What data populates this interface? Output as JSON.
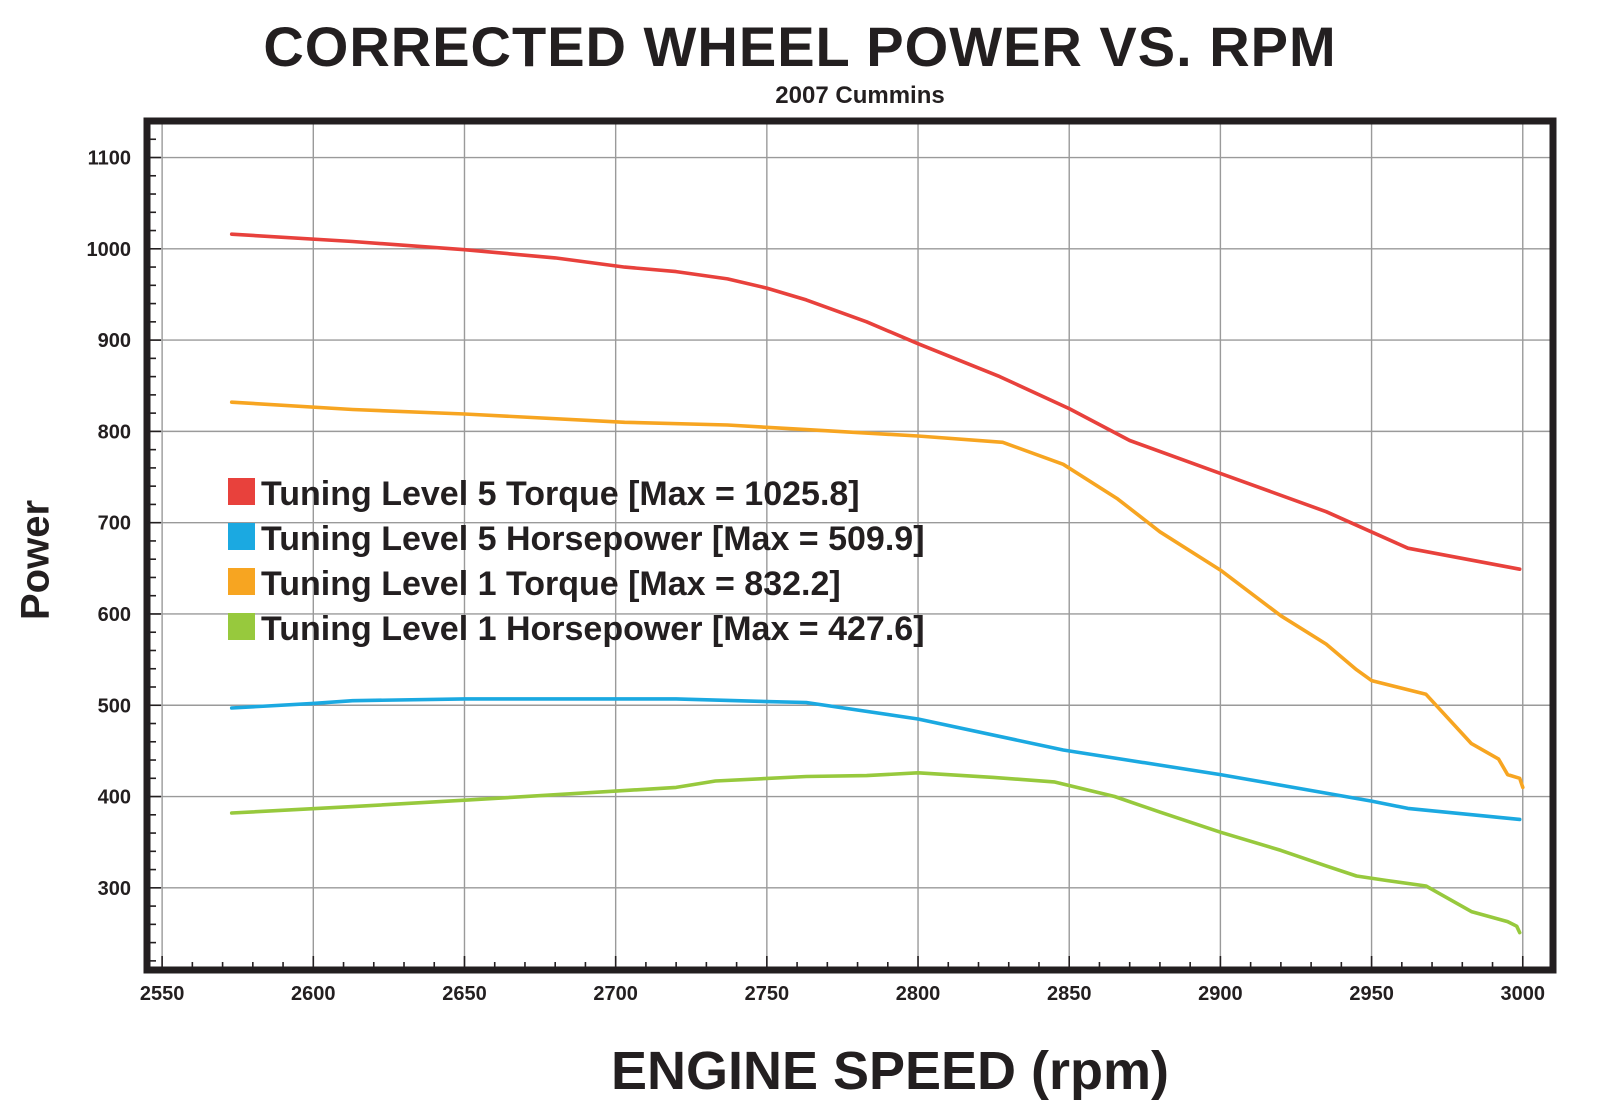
{
  "chart_data": {
    "type": "line",
    "title": "CORRECTED WHEEL POWER VS. RPM",
    "subtitle": "2007 Cummins",
    "xlabel": "ENGINE SPEED (rpm)",
    "ylabel": "Power",
    "xlim": [
      2545,
      3010
    ],
    "ylim": [
      210,
      1140
    ],
    "xticks": [
      2550,
      2600,
      2650,
      2700,
      2750,
      2800,
      2850,
      2900,
      2950,
      3000
    ],
    "xtick_labels": [
      "2550",
      "2600",
      "2650",
      "2700",
      "2750",
      "2800",
      "2850",
      "2900",
      "2950",
      "3000"
    ],
    "yticks": [
      300,
      400,
      500,
      600,
      700,
      800,
      900,
      1000,
      1100
    ],
    "ytick_labels": [
      "300",
      "400",
      "500",
      "600",
      "700",
      "800",
      "900",
      "1000",
      "1100"
    ],
    "grid": true,
    "legend_position": "center-left",
    "series": [
      {
        "name": "Tuning Level 5 Torque [Max = 1025.8]",
        "color": "#e8413c",
        "x": [
          2573,
          2613,
          2650,
          2680,
          2703,
          2720,
          2737,
          2750,
          2763,
          2783,
          2800,
          2827,
          2850,
          2870,
          2900,
          2935,
          2962,
          2999
        ],
        "y": [
          1016,
          1008,
          999,
          990,
          980,
          975,
          967,
          957,
          944,
          920,
          896,
          860,
          825,
          790,
          754,
          712,
          672,
          649
        ]
      },
      {
        "name": "Tuning Level 5 Horsepower [Max = 509.9]",
        "color": "#1ba9e1",
        "x": [
          2573,
          2600,
          2613,
          2650,
          2700,
          2720,
          2750,
          2763,
          2800,
          2848,
          2900,
          2950,
          2962,
          2999
        ],
        "y": [
          497,
          502,
          505,
          507,
          507,
          507,
          504,
          503,
          485,
          451,
          424,
          395,
          387,
          375
        ]
      },
      {
        "name": "Tuning Level 1 Torque [Max = 832.2]",
        "color": "#f7a521",
        "x": [
          2573,
          2613,
          2650,
          2703,
          2737,
          2763,
          2800,
          2828,
          2848,
          2866,
          2880,
          2900,
          2920,
          2935,
          2945,
          2950,
          2968,
          2983,
          2992,
          2995,
          2999,
          3000
        ],
        "y": [
          832,
          824,
          819,
          810,
          807,
          802,
          795,
          788,
          764,
          726,
          690,
          648,
          598,
          567,
          539,
          527,
          512,
          458,
          441,
          424,
          420,
          410
        ]
      },
      {
        "name": "Tuning Level 1 Horsepower [Max = 427.6]",
        "color": "#97c93d",
        "x": [
          2573,
          2613,
          2650,
          2700,
          2720,
          2733,
          2763,
          2783,
          2800,
          2825,
          2845,
          2865,
          2880,
          2900,
          2920,
          2935,
          2945,
          2955,
          2968,
          2983,
          2995,
          2998,
          2999
        ],
        "y": [
          382,
          389,
          396,
          406,
          410,
          417,
          422,
          423,
          426,
          421,
          416,
          400,
          383,
          361,
          341,
          324,
          313,
          308,
          302,
          274,
          263,
          258,
          251
        ]
      }
    ]
  }
}
